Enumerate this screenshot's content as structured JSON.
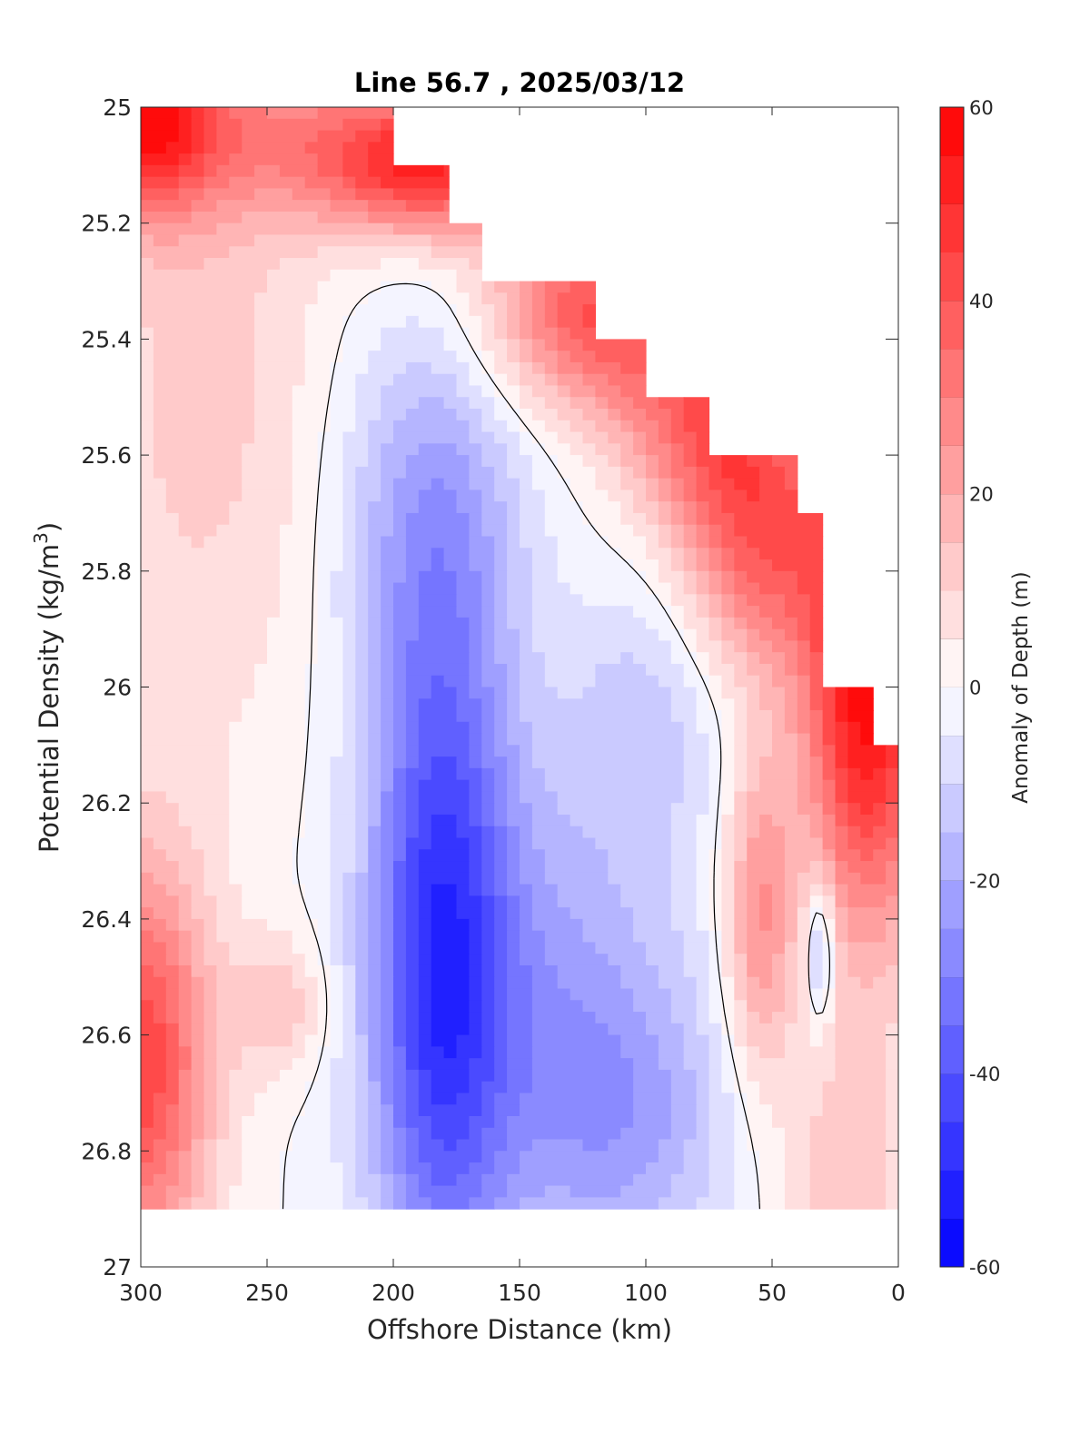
{
  "chart_data": {
    "type": "heatmap",
    "subtype": "filled-contour",
    "title": "Line 56.7 , 2025/03/12",
    "xlabel": "Offshore Distance (km)",
    "ylabel": "Potential Density (kg/m",
    "ylabel_superscript": "3",
    "ylabel_suffix": ")",
    "xlim": [
      300,
      0
    ],
    "x_reversed": true,
    "ylim": [
      25,
      27
    ],
    "y_reversed": true,
    "xticks": [
      300,
      250,
      200,
      150,
      100,
      50,
      0
    ],
    "xtick_labels": [
      "300",
      "250",
      "200",
      "150",
      "100",
      "50",
      "0"
    ],
    "yticks": [
      25,
      25.2,
      25.4,
      25.6,
      25.8,
      26,
      26.2,
      26.4,
      26.6,
      26.8,
      27
    ],
    "ytick_labels": [
      "25",
      "25.2",
      "25.4",
      "25.6",
      "25.8",
      "26",
      "26.2",
      "26.4",
      "26.6",
      "26.8",
      "27"
    ],
    "colorbar": {
      "label": "Anomaly of Depth (m)",
      "range": [
        -60,
        60
      ],
      "level_step": 5,
      "ticks": [
        -60,
        -40,
        -20,
        0,
        20,
        40,
        60
      ],
      "tick_labels": [
        "-60",
        "-40",
        "-20",
        "0",
        "20",
        "40",
        "60"
      ],
      "low_color": "#0000ff",
      "mid_color": "#ffffff",
      "high_color": "#ff0000"
    },
    "zero_contour_color": "#000000",
    "data_bottom_density": 26.9,
    "field_extent_by_density": [
      {
        "density": 25.0,
        "inshore_limit_km": 200
      },
      {
        "density": 25.1,
        "inshore_limit_km": 178
      },
      {
        "density": 25.2,
        "inshore_limit_km": 165
      },
      {
        "density": 25.3,
        "inshore_limit_km": 120
      },
      {
        "density": 25.4,
        "inshore_limit_km": 100
      },
      {
        "density": 25.5,
        "inshore_limit_km": 75
      },
      {
        "density": 25.6,
        "inshore_limit_km": 40
      },
      {
        "density": 25.7,
        "inshore_limit_km": 30
      },
      {
        "density": 26.0,
        "inshore_limit_km": 10
      },
      {
        "density": 26.1,
        "inshore_limit_km": 0
      },
      {
        "density": 26.3,
        "inshore_limit_km": 0
      }
    ],
    "features": [
      {
        "kind": "positive-anomaly",
        "region": "upper inshore slope edge",
        "distance_km": [
          0,
          60
        ],
        "density": [
          25.6,
          26.3
        ],
        "peak_anomaly_m": 55
      },
      {
        "kind": "positive-anomaly",
        "region": "upper offshore corner",
        "distance_km": [
          265,
          300
        ],
        "density": [
          25.0,
          25.2
        ],
        "peak_anomaly_m": 50
      },
      {
        "kind": "positive-anomaly",
        "region": "deep offshore corner",
        "distance_km": [
          280,
          300
        ],
        "density": [
          26.4,
          26.9
        ],
        "peak_anomaly_m": 45
      },
      {
        "kind": "positive-anomaly",
        "region": "deep lobe",
        "distance_km": [
          45,
          65
        ],
        "density": [
          26.1,
          26.7
        ],
        "peak_anomaly_m": 30
      },
      {
        "kind": "negative-anomaly",
        "region": "central core",
        "distance_km": [
          165,
          205
        ],
        "density": [
          25.9,
          26.8
        ],
        "peak_anomaly_m": -40
      },
      {
        "kind": "negative-anomaly",
        "region": "small inshore patch",
        "distance_km": [
          28,
          38
        ],
        "density": [
          26.3,
          26.6
        ],
        "peak_anomaly_m": -20
      }
    ]
  }
}
